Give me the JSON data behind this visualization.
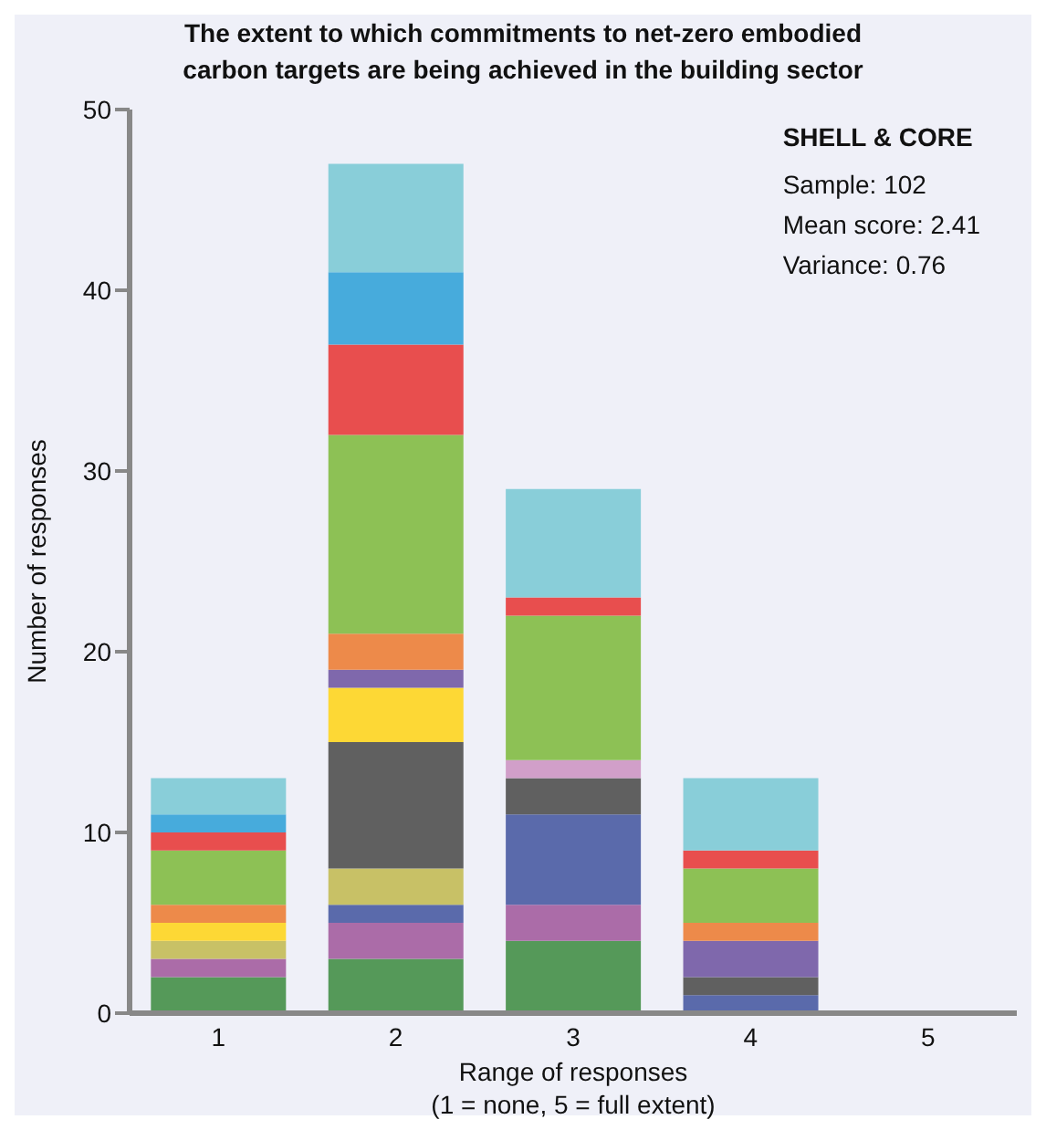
{
  "chart_data": {
    "type": "bar",
    "title": "The extent to which commitments to net-zero embodied\ncarbon targets are being achieved in the building sector",
    "xlabel": "Range of responses\n(1 = none, 5 = full extent)",
    "ylabel": "Number of responses",
    "categories": [
      "1",
      "2",
      "3",
      "4",
      "5"
    ],
    "stacked": true,
    "ylim": [
      0,
      50
    ],
    "yticks": [
      0,
      10,
      20,
      30,
      40,
      50
    ],
    "grid": false,
    "legend": false,
    "annotations": [
      "SHELL & CORE",
      "Sample: 102",
      "Mean score: 2.41",
      "Variance: 0.76"
    ],
    "series": [
      {
        "color": "#559959",
        "values": [
          2,
          3,
          4,
          0,
          0
        ]
      },
      {
        "color": "#ab6ca8",
        "values": [
          1,
          2,
          2,
          0,
          0
        ]
      },
      {
        "color": "#5a6aab",
        "values": [
          0,
          1,
          5,
          1,
          0
        ]
      },
      {
        "color": "#c8c166",
        "values": [
          1,
          2,
          0,
          0,
          0
        ]
      },
      {
        "color": "#606060",
        "values": [
          0,
          7,
          2,
          1,
          0
        ]
      },
      {
        "color": "#d19fc9",
        "values": [
          0,
          0,
          1,
          0,
          0
        ]
      },
      {
        "color": "#fdd835",
        "values": [
          1,
          3,
          0,
          0,
          0
        ]
      },
      {
        "color": "#7f68ac",
        "values": [
          0,
          1,
          0,
          2,
          0
        ]
      },
      {
        "color": "#ed8a4a",
        "values": [
          1,
          2,
          0,
          1,
          0
        ]
      },
      {
        "color": "#8dc155",
        "values": [
          3,
          11,
          8,
          3,
          0
        ]
      },
      {
        "color": "#e84e4e",
        "values": [
          1,
          5,
          1,
          1,
          0
        ]
      },
      {
        "color": "#47abdc",
        "values": [
          1,
          4,
          0,
          0,
          0
        ]
      },
      {
        "color": "#89ced9",
        "values": [
          2,
          6,
          6,
          4,
          0
        ]
      }
    ]
  }
}
